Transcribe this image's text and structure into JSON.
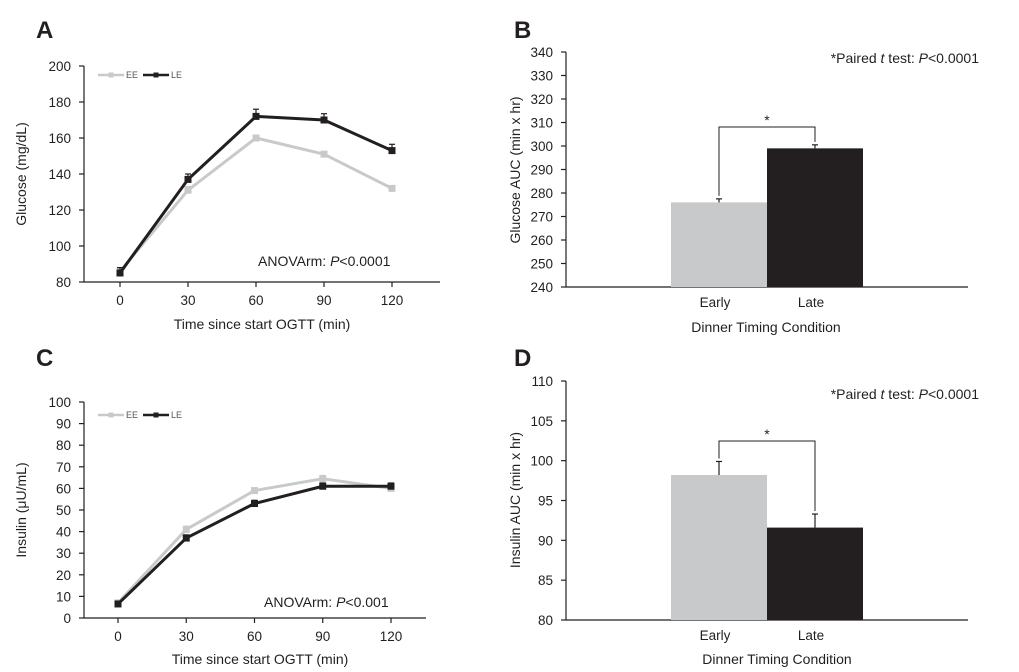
{
  "chart_data": [
    {
      "panel": "A",
      "type": "line",
      "x": [
        0,
        30,
        60,
        90,
        120
      ],
      "xlabel": "Time since start OGTT (min)",
      "ylabel": "Glucose (mg/dL)",
      "ylim": [
        80,
        200
      ],
      "yticks": [
        80,
        100,
        120,
        140,
        160,
        180,
        200
      ],
      "series": [
        {
          "name": "EE",
          "values": [
            86,
            131,
            160,
            151,
            132
          ],
          "errors": [
            2,
            2,
            1.5,
            1,
            1
          ],
          "color": "#c8c9cb"
        },
        {
          "name": "LE",
          "values": [
            85,
            137,
            172,
            170,
            153
          ],
          "errors": [
            3,
            3,
            4,
            3.5,
            3.5
          ],
          "color": "#231f20"
        }
      ],
      "annotation": {
        "prefix": "ANOVArm: ",
        "p": "P",
        "rest": "<0.0001"
      },
      "legend": "top-left",
      "grid": false
    },
    {
      "panel": "B",
      "type": "bar",
      "categories": [
        "Early",
        "Late"
      ],
      "values": [
        276,
        299
      ],
      "errors": [
        1.5,
        1.5
      ],
      "colors": [
        "#c8c9cb",
        "#231f20"
      ],
      "xlabel": "Dinner Timing Condition",
      "ylabel": "Glucose AUC (min x hr)",
      "ylim": [
        240,
        340
      ],
      "yticks": [
        240,
        250,
        260,
        270,
        280,
        290,
        300,
        310,
        320,
        330,
        340
      ],
      "significance": "*",
      "annotation": {
        "prefix": "*Paired ",
        "t": "t",
        "mid": " test: ",
        "p": "P",
        "rest": "<0.0001"
      },
      "grid": false
    },
    {
      "panel": "C",
      "type": "line",
      "x": [
        0,
        30,
        60,
        90,
        120
      ],
      "xlabel": "Time since start OGTT (min)",
      "ylabel": "Insulin (μU/mL)",
      "ylim": [
        0,
        100
      ],
      "yticks": [
        0,
        10,
        20,
        30,
        40,
        50,
        60,
        70,
        80,
        90,
        100
      ],
      "series": [
        {
          "name": "EE",
          "values": [
            7,
            41,
            59,
            64.5,
            60
          ],
          "errors": [
            1,
            1.5,
            1,
            1.5,
            1
          ],
          "color": "#c8c9cb"
        },
        {
          "name": "LE",
          "values": [
            6.5,
            37,
            53,
            61,
            61
          ],
          "errors": [
            1,
            1.5,
            1.5,
            1.5,
            1.5
          ],
          "color": "#231f20"
        }
      ],
      "annotation": {
        "prefix": "ANOVArm: ",
        "p": "P",
        "rest": "<0.001"
      },
      "legend": "top-left",
      "grid": false
    },
    {
      "panel": "D",
      "type": "bar",
      "categories": [
        "Early",
        "Late"
      ],
      "values": [
        98.2,
        91.6
      ],
      "errors": [
        1.7,
        1.7
      ],
      "colors": [
        "#c8c9cb",
        "#231f20"
      ],
      "xlabel": "Dinner Timing Condition",
      "ylabel": "Insulin AUC (min x hr)",
      "ylim": [
        80,
        110
      ],
      "yticks": [
        80,
        85,
        90,
        95,
        100,
        105,
        110
      ],
      "significance": "*",
      "annotation": {
        "prefix": "*Paired ",
        "t": "t",
        "mid": " test: ",
        "p": "P",
        "rest": "<0.0001"
      },
      "grid": false
    }
  ]
}
